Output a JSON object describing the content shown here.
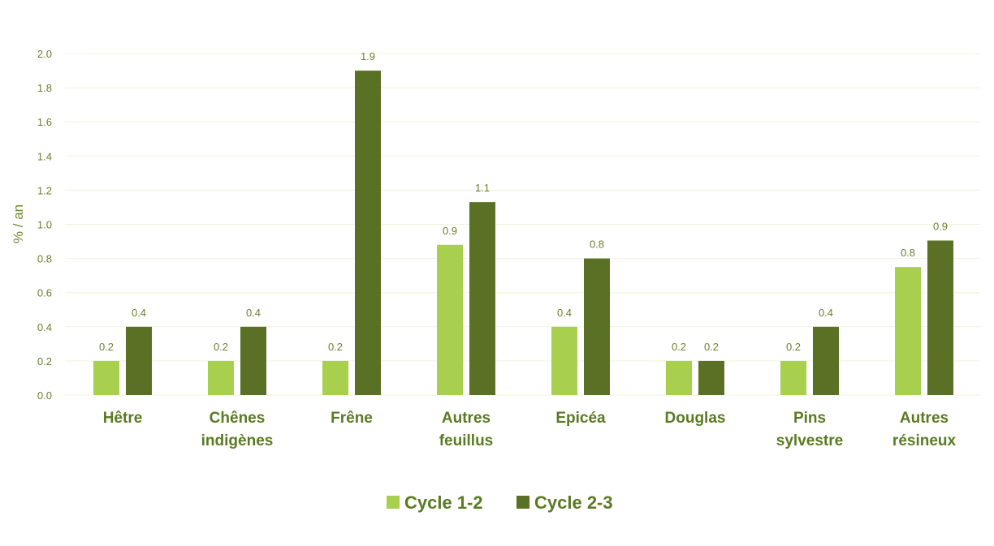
{
  "chart_data": {
    "type": "bar",
    "title": "",
    "xlabel": "",
    "ylabel": "% / an",
    "ylim": [
      0,
      2.0
    ],
    "yticks": [
      "0.0",
      "0.2",
      "0.4",
      "0.6",
      "0.8",
      "1.0",
      "1.2",
      "1.4",
      "1.6",
      "1.8",
      "2.0"
    ],
    "grid": true,
    "legend_position": "bottom",
    "categories": [
      [
        "Hêtre"
      ],
      [
        "Chênes",
        "indigènes"
      ],
      [
        "Frêne"
      ],
      [
        "Autres",
        "feuillus"
      ],
      [
        "Epicéa"
      ],
      [
        "Douglas"
      ],
      [
        "Pins",
        "sylvestre"
      ],
      [
        "Autres",
        "résineux"
      ]
    ],
    "series": [
      {
        "name": "Cycle 1-2",
        "color": "#a9cf4f",
        "values": [
          0.2,
          0.2,
          0.2,
          0.88,
          0.4,
          0.2,
          0.2,
          0.75
        ],
        "labels": [
          "0.2",
          "0.2",
          "0.2",
          "0.9",
          "0.4",
          "0.2",
          "0.2",
          "0.8"
        ]
      },
      {
        "name": "Cycle 2-3",
        "color": "#5a7125",
        "values": [
          0.4,
          0.4,
          1.9,
          1.13,
          0.8,
          0.2,
          0.4,
          0.905
        ],
        "labels": [
          "0.4",
          "0.4",
          "1.9",
          "1.1",
          "0.8",
          "0.2",
          "0.4",
          "0.9"
        ]
      }
    ]
  }
}
